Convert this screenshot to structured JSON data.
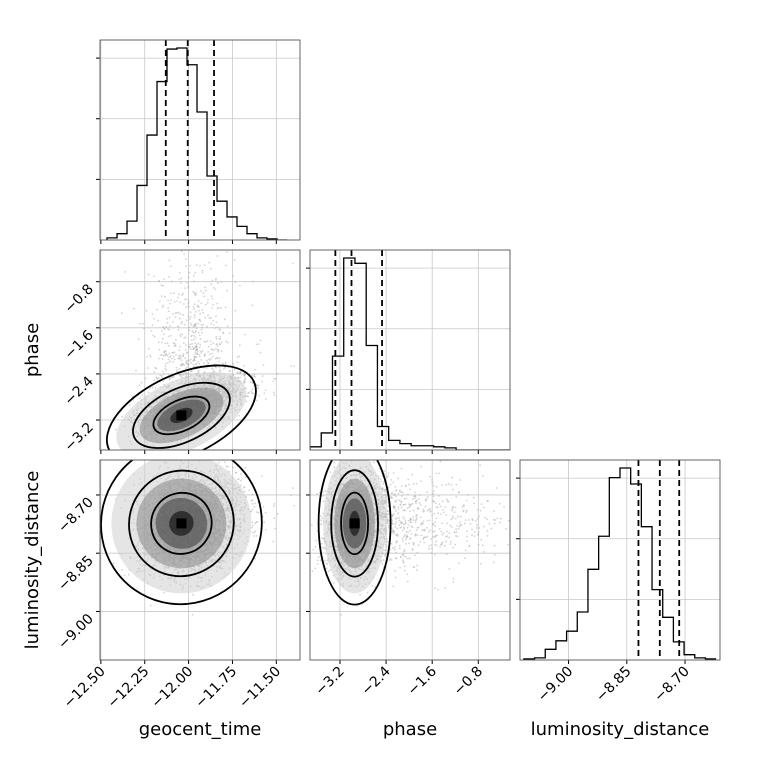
{
  "chart_data": {
    "type": "corner",
    "parameters": [
      "geocent_time",
      "phase",
      "luminosity_distance"
    ],
    "axis_labels": {
      "geocent_time": "geocent_time",
      "phase": "phase",
      "luminosity_distance": "luminosity_distance"
    },
    "ranges": {
      "geocent_time": [
        -12.505,
        -11.365
      ],
      "phase": [
        -3.72,
        -0.25
      ],
      "luminosity_distance": [
        -9.125,
        -8.61
      ]
    },
    "ticks": {
      "geocent_time": {
        "values": [
          -12.5,
          -12.25,
          -12.0,
          -11.75,
          -11.5
        ],
        "labels": [
          "−12.50",
          "−12.25",
          "−12.00",
          "−11.75",
          "−11.50"
        ]
      },
      "phase": {
        "values": [
          -3.2,
          -2.4,
          -1.6,
          -0.8
        ],
        "labels": [
          "−3.2",
          "−2.4",
          "−1.6",
          "−0.8"
        ]
      },
      "luminosity_distance": {
        "values": [
          -9.0,
          -8.85,
          -8.7
        ],
        "labels": [
          "−9.00",
          "−8.85",
          "−8.70"
        ]
      }
    },
    "quantiles": {
      "geocent_time": [
        -12.13,
        -12.005,
        -11.855
      ],
      "phase": [
        -3.28,
        -3.0,
        -2.47
      ],
      "luminosity_distance": [
        -8.82,
        -8.765,
        -8.715
      ]
    },
    "histograms": {
      "geocent_time": {
        "bin_start": -12.465,
        "bin_width": 0.057,
        "counts": [
          2,
          6,
          18,
          52,
          100,
          151,
          182,
          183,
          167,
          122,
          61,
          37,
          22,
          13,
          6,
          2,
          1,
          0
        ]
      },
      "phase": {
        "bin_start": -3.72,
        "bin_width": 0.195,
        "counts": [
          3,
          16,
          88,
          180,
          175,
          98,
          22,
          9,
          6,
          4,
          4,
          3,
          2,
          0,
          0,
          0,
          0,
          0
        ]
      },
      "luminosity_distance": {
        "bin_start": -9.115,
        "bin_width": 0.0275,
        "counts": [
          1,
          2,
          10,
          18,
          27,
          45,
          85,
          116,
          171,
          180,
          165,
          125,
          66,
          40,
          17,
          5,
          2,
          1
        ]
      }
    },
    "scatter_fill": "#a9a9a9",
    "density_colors": [
      "#f3f3f3",
      "#cfcfcf",
      "#888888",
      "#3a3a3a",
      "#000000"
    ],
    "contour_levels": 3,
    "grid": true
  }
}
